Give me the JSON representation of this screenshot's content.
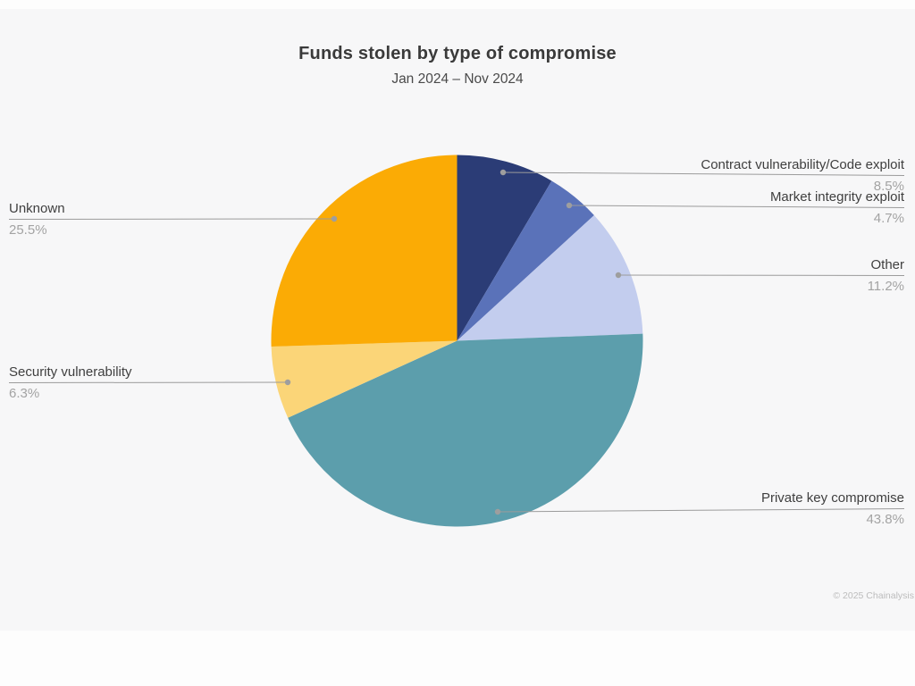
{
  "header": {
    "title": "Funds stolen by type of compromise",
    "subtitle": "Jan 2024 – Nov 2024"
  },
  "footer": {
    "copyright": "© 2025 Chainalysis"
  },
  "chart_data": {
    "type": "pie",
    "title": "Funds stolen by type of compromise",
    "subtitle": "Jan 2024 – Nov 2024",
    "start_angle_deg": 0,
    "direction": "clockwise",
    "unit": "%",
    "legend_position": "callout-labels",
    "slices": [
      {
        "label": "Contract vulnerability/Code exploit",
        "value": 8.5,
        "pct_label": "8.5%",
        "color": "#2B3C76"
      },
      {
        "label": "Market integrity exploit",
        "value": 4.7,
        "pct_label": "4.7%",
        "color": "#5A72B9"
      },
      {
        "label": "Other",
        "value": 11.2,
        "pct_label": "11.2%",
        "color": "#C3CDEE"
      },
      {
        "label": "Private key compromise",
        "value": 43.8,
        "pct_label": "43.8%",
        "color": "#5C9EAC"
      },
      {
        "label": "Security vulnerability",
        "value": 6.3,
        "pct_label": "6.3%",
        "color": "#FBD578"
      },
      {
        "label": "Unknown",
        "value": 25.5,
        "pct_label": "25.5%",
        "color": "#FBAB05"
      }
    ],
    "style": {
      "leader_line_color": "#9b9b9b",
      "leader_dot_color": "#9e9e9e",
      "label_color": "#3f3f3f",
      "pct_color": "#a3a3a3",
      "canvas_background": "#f7f7f8"
    }
  }
}
